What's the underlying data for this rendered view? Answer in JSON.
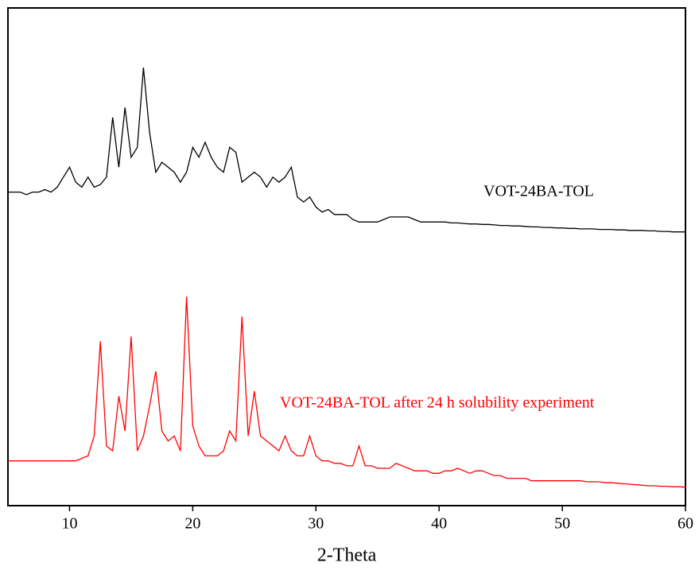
{
  "chart_data": {
    "type": "line",
    "x_label": "2-Theta",
    "x": [
      5,
      5.5,
      6,
      6.5,
      7,
      7.5,
      8,
      8.5,
      9,
      9.5,
      10,
      10.5,
      11,
      11.5,
      12,
      12.5,
      13,
      13.5,
      14,
      14.5,
      15,
      15.5,
      16,
      16.5,
      17,
      17.5,
      18,
      18.5,
      19,
      19.5,
      20,
      20.5,
      21,
      21.5,
      22,
      22.5,
      23,
      23.5,
      24,
      24.5,
      25,
      25.5,
      26,
      26.5,
      27,
      27.5,
      28,
      28.5,
      29,
      29.5,
      30,
      30.5,
      31,
      31.5,
      32,
      32.5,
      33,
      33.5,
      34,
      34.5,
      35,
      35.5,
      36,
      36.5,
      37,
      37.5,
      38,
      38.5,
      39,
      39.5,
      40,
      40.5,
      41,
      41.5,
      42,
      42.5,
      43,
      43.5,
      44,
      44.5,
      45,
      45.5,
      46,
      46.5,
      47,
      47.5,
      48,
      48.5,
      49,
      49.5,
      50,
      50.5,
      51,
      51.5,
      52,
      52.5,
      53,
      53.5,
      54,
      54.5,
      55,
      55.5,
      56,
      56.5,
      57,
      57.5,
      58,
      58.5,
      59,
      59.5,
      60
    ],
    "series": [
      {
        "name": "VOT-24BA-TOL",
        "color": "#000000",
        "values": [
          63,
          63,
          63,
          62.5,
          63,
          63,
          63.5,
          63,
          64,
          66,
          68,
          65,
          64,
          66,
          64,
          64.5,
          66,
          78,
          68,
          80,
          70,
          72,
          88,
          75,
          67,
          69,
          68,
          67,
          65,
          67,
          72,
          70,
          73,
          70,
          68,
          67,
          72,
          71,
          65,
          66,
          67,
          66,
          64,
          66,
          65,
          66,
          68,
          62,
          61,
          62,
          60,
          59,
          59.5,
          58.5,
          58.5,
          58.5,
          57.5,
          57,
          57,
          57,
          57,
          57.5,
          58,
          58,
          58,
          58,
          57.5,
          57,
          57,
          57,
          57,
          57,
          56.8,
          56.8,
          56.7,
          56.6,
          56.6,
          56.5,
          56.5,
          56.4,
          56.3,
          56.3,
          56.2,
          56.2,
          56.1,
          56,
          56,
          55.9,
          55.9,
          55.8,
          55.8,
          55.7,
          55.7,
          55.6,
          55.6,
          55.6,
          55.5,
          55.5,
          55.5,
          55.4,
          55.4,
          55.3,
          55.3,
          55.3,
          55.2,
          55.2,
          55.1,
          55.1,
          55,
          55,
          55
        ]
      },
      {
        "name": "VOT-24BA-TOL after 24 h solubility experiment",
        "color": "#ff0000",
        "values": [
          9,
          9,
          9,
          9,
          9,
          9,
          9,
          9,
          9,
          9,
          9,
          9,
          9.5,
          10,
          14,
          33,
          12,
          11,
          22,
          15,
          34,
          11,
          14,
          20,
          27,
          15,
          13,
          14,
          11,
          42,
          16,
          12,
          10,
          10,
          10,
          11,
          15,
          13,
          38,
          14,
          23,
          14,
          13,
          12,
          11,
          14,
          11,
          10,
          10,
          14,
          10,
          9,
          9,
          8.5,
          8.5,
          8,
          8,
          12,
          8,
          8,
          7.5,
          7.5,
          7.5,
          8.5,
          8,
          7.5,
          7,
          7,
          7,
          6.5,
          6.5,
          7,
          7,
          7.5,
          7,
          6.5,
          7,
          7,
          6.5,
          6,
          6,
          5.5,
          5.5,
          5.5,
          5.5,
          5,
          5,
          5,
          5,
          5,
          5,
          5,
          5,
          5,
          4.8,
          4.8,
          4.8,
          4.6,
          4.6,
          4.5,
          4.4,
          4.3,
          4.2,
          4.1,
          4,
          4,
          3.9,
          3.9,
          3.8,
          3.8,
          3.7
        ]
      }
    ],
    "xlim": [
      5,
      60
    ],
    "xticks": [
      10,
      20,
      30,
      40,
      50,
      60
    ],
    "ylim": [
      0,
      100
    ]
  }
}
